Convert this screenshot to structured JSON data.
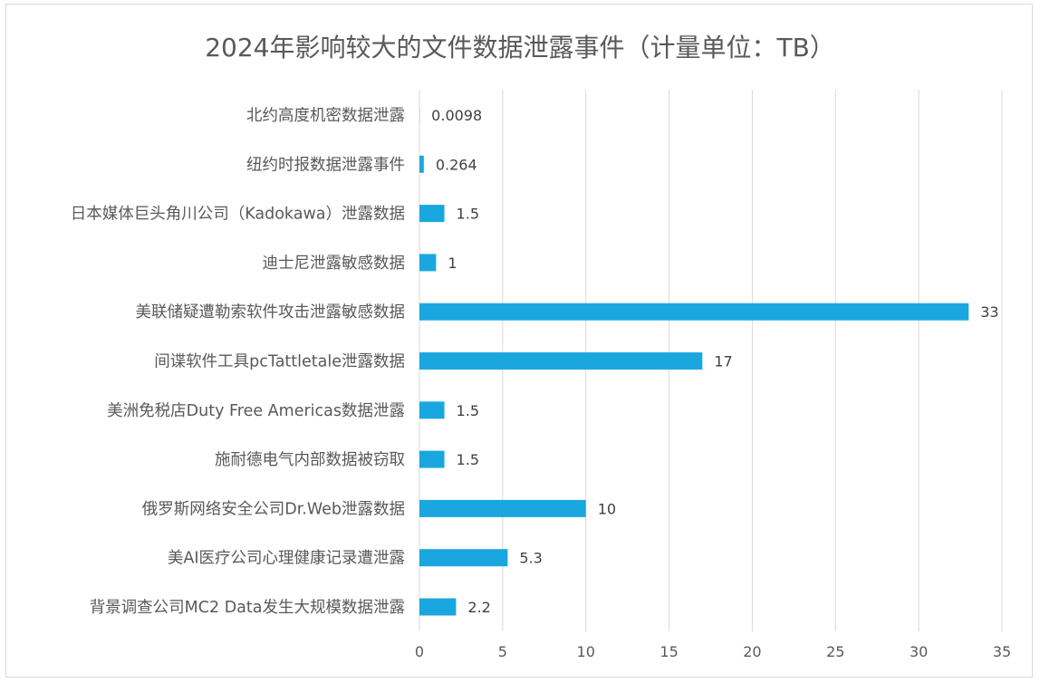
{
  "chart_data": {
    "type": "bar",
    "orientation": "horizontal",
    "title": "2024年影响较大的文件数据泄露事件（计量单位：TB）",
    "categories": [
      "北约高度机密数据泄露",
      "纽约时报数据泄露事件",
      "日本媒体巨头角川公司（Kadokawa）泄露数据",
      "迪士尼泄露敏感数据",
      "美联储疑遭勒索软件攻击泄露敏感数据",
      "间谍软件工具pcTattletale泄露数据",
      "美洲免税店Duty Free Americas数据泄露",
      "施耐德电气内部数据被窃取",
      "俄罗斯网络安全公司Dr.Web泄露数据",
      "美AI医疗公司心理健康记录遭泄露",
      "背景调查公司MC2 Data发生大规模数据泄露"
    ],
    "values": [
      0.0098,
      0.264,
      1.5,
      1,
      33,
      17,
      1.5,
      1.5,
      10,
      5.3,
      2.2
    ],
    "data_labels": [
      "0.0098",
      "0.264",
      "1.5",
      "1",
      "33",
      "17",
      "1.5",
      "1.5",
      "10",
      "5.3",
      "2.2"
    ],
    "xlim": [
      0,
      35
    ],
    "x_ticks": [
      0,
      5,
      10,
      15,
      20,
      25,
      30,
      35
    ],
    "xlabel": "",
    "ylabel": "",
    "grid": true,
    "legend": "none",
    "bar_color": "#1aa7e0",
    "grid_color": "#d9d9d9"
  }
}
